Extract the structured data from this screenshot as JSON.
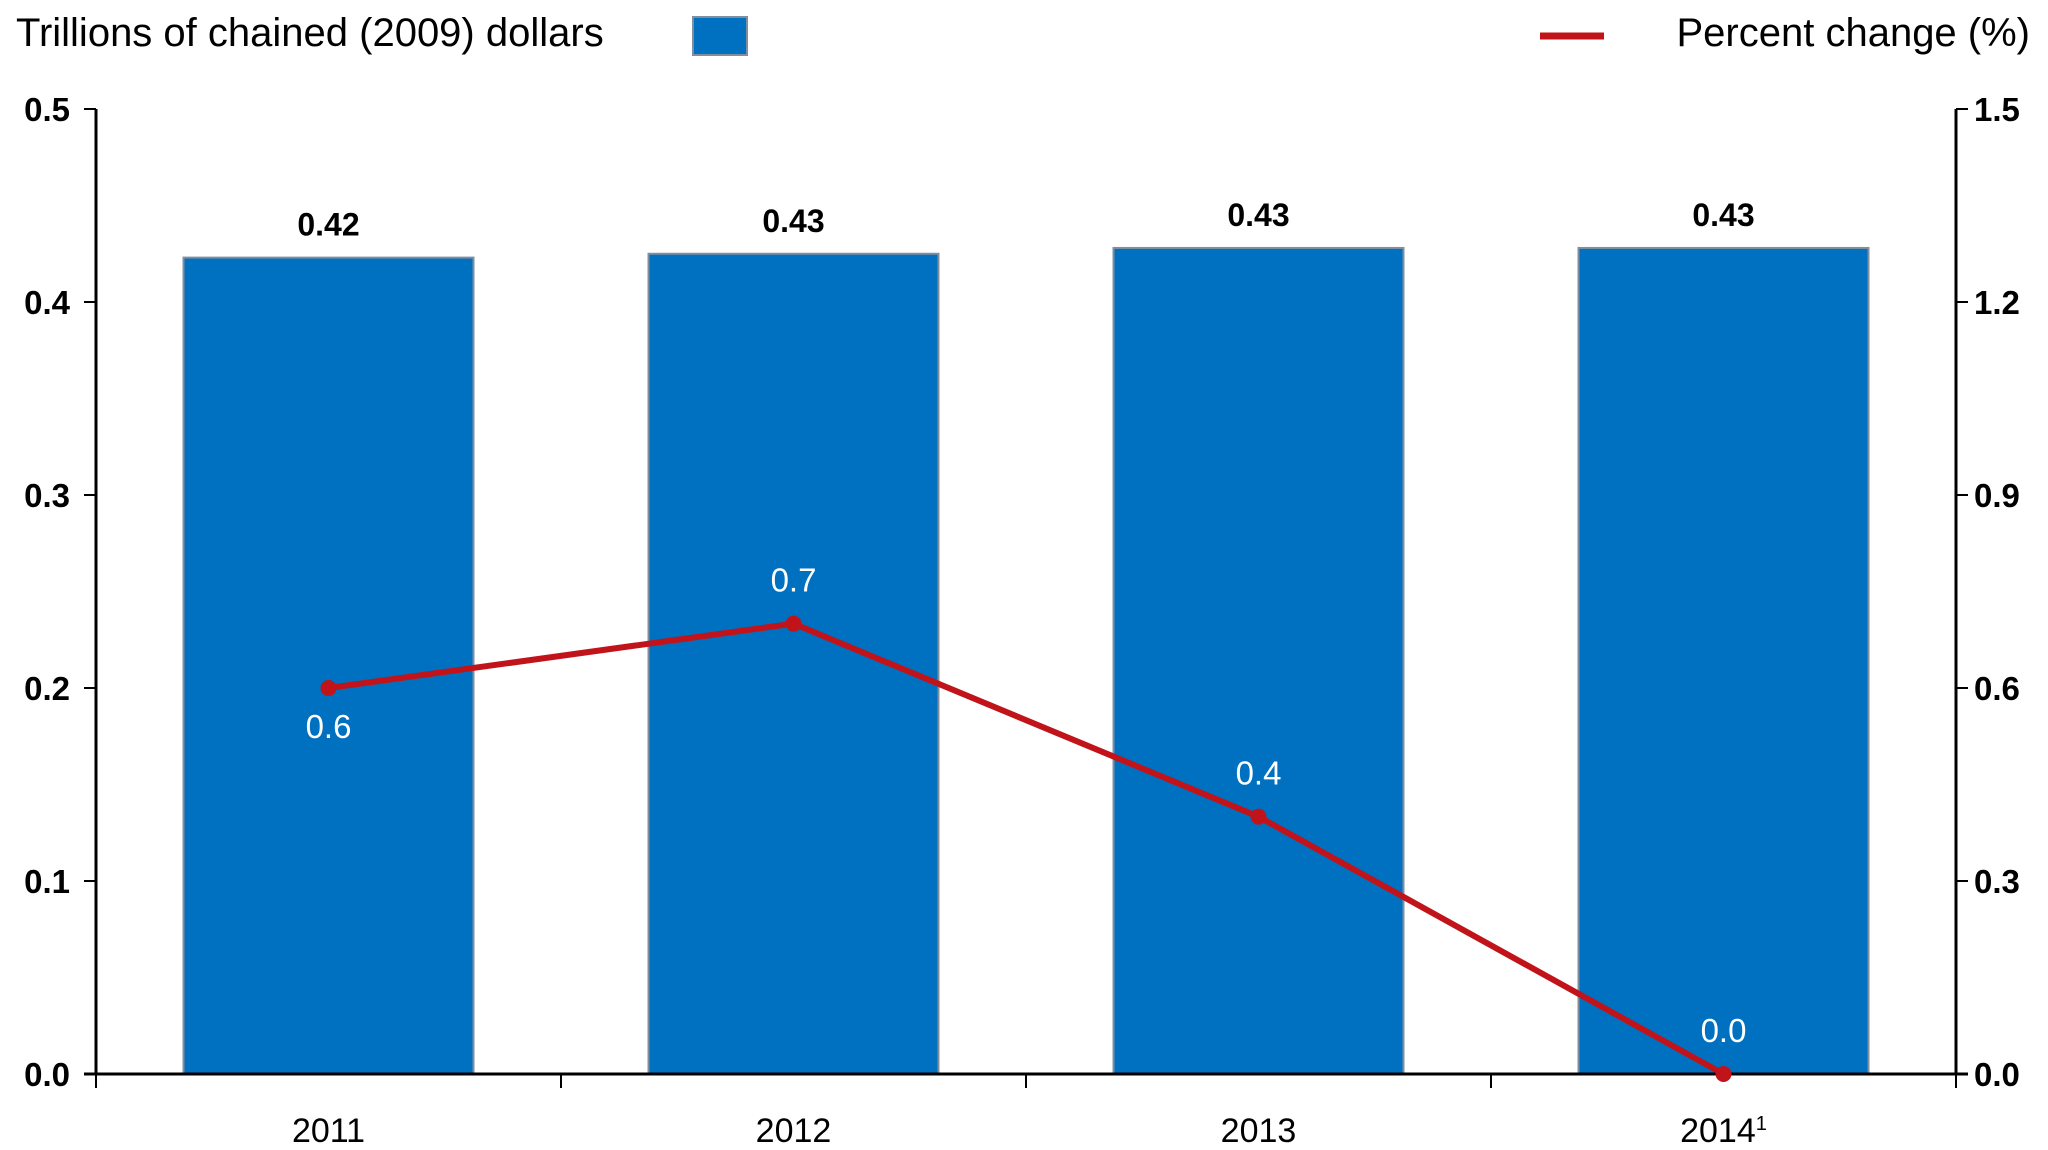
{
  "chart_data": {
    "type": "bar",
    "combo": "bar+line (dual axis)",
    "title": "",
    "categories": [
      "2011",
      "2012",
      "2013",
      "2014"
    ],
    "category_superscripts": [
      "",
      "",
      "",
      "1"
    ],
    "series": [
      {
        "name": "Trillions of chained (2009) dollars",
        "type": "bar",
        "axis": "left",
        "color": "#0070c0",
        "edge_color": "#7f8fa0",
        "values": [
          0.423,
          0.425,
          0.428,
          0.428
        ],
        "labels": [
          "0.42",
          "0.43",
          "0.43",
          "0.43"
        ]
      },
      {
        "name": "Percent change (%)",
        "type": "line",
        "axis": "right",
        "color": "#c0141a",
        "values": [
          0.6,
          0.7,
          0.4,
          0.0
        ],
        "labels": [
          "0.6",
          "0.7",
          "0.4",
          "0.0"
        ],
        "label_position": [
          "below",
          "above",
          "above",
          "above"
        ]
      }
    ],
    "left_axis": {
      "label": "Trillions of chained (2009) dollars",
      "ylim": [
        0,
        0.5
      ],
      "ticks": [
        "0.0",
        "0.1",
        "0.2",
        "0.3",
        "0.4",
        "0.5"
      ]
    },
    "right_axis": {
      "label": "Percent change (%)",
      "ylim": [
        0,
        1.5
      ],
      "ticks": [
        "0.0",
        "0.3",
        "0.6",
        "0.9",
        "1.2",
        "1.5"
      ]
    },
    "grid": false,
    "legend": {
      "placement": "top",
      "items": [
        {
          "label": "Trillions of chained (2009) dollars",
          "swatch": "box",
          "position": "top-left"
        },
        {
          "label": "Percent change (%)",
          "swatch": "line",
          "position": "top-right"
        }
      ]
    },
    "xlabel": "",
    "ylabel": ""
  }
}
